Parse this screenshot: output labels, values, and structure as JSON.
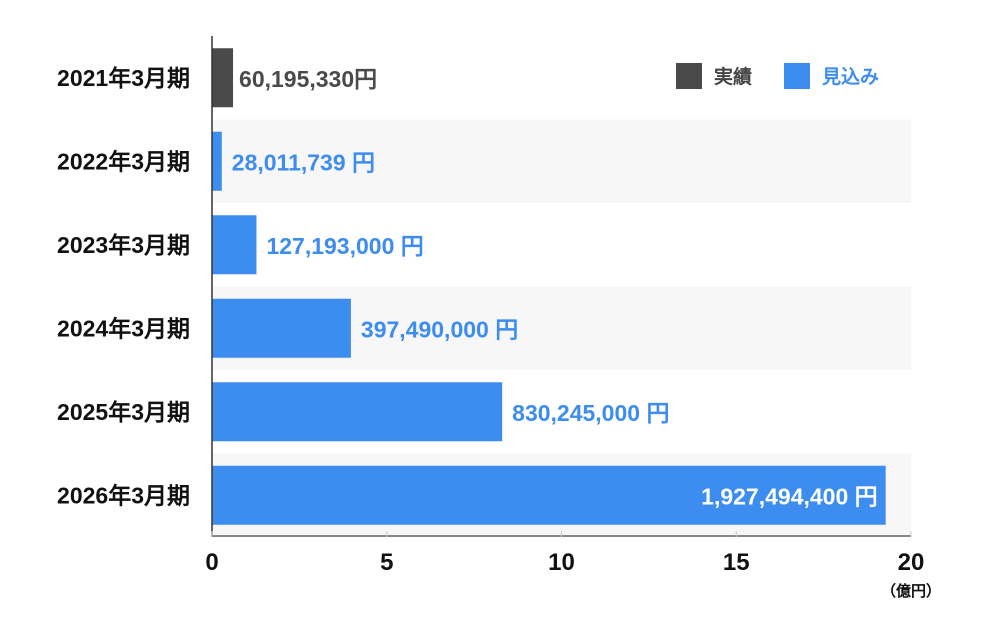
{
  "chart_data": {
    "type": "bar",
    "orientation": "horizontal",
    "categories": [
      "2021年3月期",
      "2022年3月期",
      "2023年3月期",
      "2024年3月期",
      "2025年3月期",
      "2026年3月期"
    ],
    "values": [
      0.6019533,
      0.28011739,
      1.27193,
      3.9749,
      8.30245,
      19.274944
    ],
    "value_labels": [
      "60,195,330円",
      "28,011,739 円",
      "127,193,000 円",
      "397,490,000  円",
      "830,245,000  円",
      "1,927,494,400  円"
    ],
    "series_of": [
      "実績",
      "見込み",
      "見込み",
      "見込み",
      "見込み",
      "見込み"
    ],
    "legend": [
      {
        "name": "実績",
        "color": "#4a4a4a"
      },
      {
        "name": "見込み",
        "color": "#3d8cf0"
      }
    ],
    "legend_position": "top-right",
    "xlim": [
      0,
      20
    ],
    "xticks": [
      "0",
      "5",
      "10",
      "15",
      "20"
    ],
    "xlabel": "（億円）",
    "ylabel": "",
    "title": "",
    "grid": false,
    "colors": {
      "actual": "#4a4a4a",
      "forecast": "#3d8cf0",
      "band": "#f7f7f7"
    }
  }
}
